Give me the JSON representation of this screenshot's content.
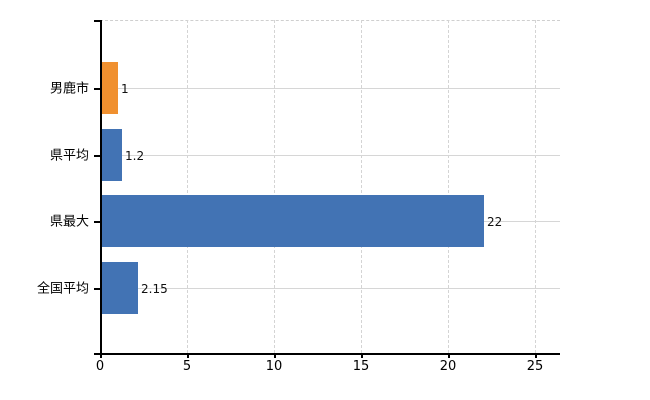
{
  "chart_data": {
    "type": "bar",
    "orientation": "horizontal",
    "title": "",
    "xlabel": "",
    "ylabel": "",
    "categories": [
      "男鹿市",
      "県平均",
      "県最大",
      "全国平均"
    ],
    "values": [
      1,
      1.2,
      22,
      2.15
    ],
    "value_labels": [
      "1",
      "1.2",
      "22",
      "2.15"
    ],
    "series_colors": [
      "#F0902F",
      "#4273B4",
      "#4273B4",
      "#4273B4"
    ],
    "highlight_category": "男鹿市",
    "xlim": [
      0,
      25
    ],
    "x_ticks": [
      "0",
      "5",
      "10",
      "15",
      "20",
      "25"
    ],
    "x_tick_values": [
      0,
      5,
      10,
      15,
      20,
      25
    ],
    "grid": "dashed vertical gridlines at x ticks, solid horizontal gridlines at category centers, dashed top border",
    "legend_position": "none"
  },
  "colors": {
    "highlight_bar": "#F0902F",
    "default_bar": "#4273B4",
    "axis": "#000000",
    "gridline": "#d6d6d6",
    "background": "#ffffff",
    "text": "#000000"
  }
}
